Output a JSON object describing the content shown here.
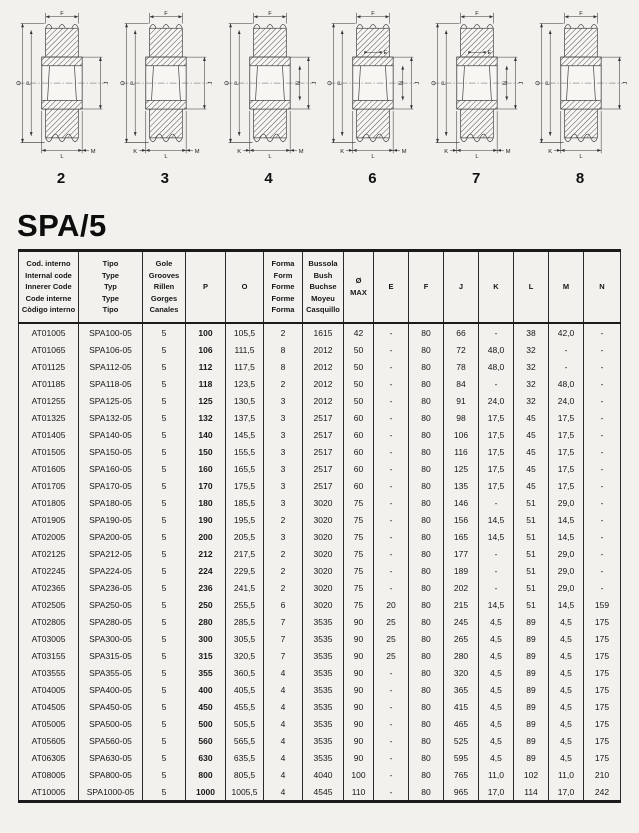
{
  "page": {
    "title": "SPA/5"
  },
  "diagrams": [
    {
      "number": "2",
      "labels": {
        "f": "F",
        "o": "O",
        "p": "P",
        "j": "J",
        "n": "",
        "e": "",
        "k": "",
        "l": "L",
        "m": "M"
      }
    },
    {
      "number": "3",
      "labels": {
        "f": "F",
        "o": "O",
        "p": "P",
        "j": "J",
        "n": "",
        "e": "",
        "k": "K",
        "l": "L",
        "m": "M"
      }
    },
    {
      "number": "4",
      "labels": {
        "f": "F",
        "o": "O",
        "p": "P",
        "j": "J",
        "n": "N",
        "e": "",
        "k": "K",
        "l": "L",
        "m": "M"
      }
    },
    {
      "number": "6",
      "labels": {
        "f": "F",
        "o": "O",
        "p": "P",
        "j": "J",
        "n": "N",
        "e": "E",
        "k": "K",
        "l": "L",
        "m": "M"
      }
    },
    {
      "number": "7",
      "labels": {
        "f": "F",
        "o": "O",
        "p": "P",
        "j": "J",
        "n": "N",
        "e": "E",
        "k": "K",
        "l": "L",
        "m": "M"
      }
    },
    {
      "number": "8",
      "labels": {
        "f": "F",
        "o": "O",
        "p": "P",
        "j": "J",
        "n": "",
        "e": "",
        "k": "K",
        "l": "L",
        "m": ""
      }
    }
  ],
  "table": {
    "columns": [
      {
        "lines": [
          "Cod. interno",
          "Internal code",
          "Innerer Code",
          "Code interne",
          "Còdigo interno"
        ]
      },
      {
        "lines": [
          "Tipo",
          "Type",
          "Typ",
          "Type",
          "Tipo"
        ]
      },
      {
        "lines": [
          "Gole",
          "Grooves",
          "Rillen",
          "Gorges",
          "Canales"
        ]
      },
      {
        "lines": [
          "P"
        ]
      },
      {
        "lines": [
          "O"
        ]
      },
      {
        "lines": [
          "Forma",
          "Form",
          "Forme",
          "Forme",
          "Forma"
        ]
      },
      {
        "lines": [
          "Bussola",
          "Bush",
          "Buchse",
          "Moyeu",
          "Casquillo"
        ]
      },
      {
        "lines": [
          "Ø",
          "MAX"
        ]
      },
      {
        "lines": [
          "E"
        ]
      },
      {
        "lines": [
          "F"
        ]
      },
      {
        "lines": [
          "J"
        ]
      },
      {
        "lines": [
          "K"
        ]
      },
      {
        "lines": [
          "L"
        ]
      },
      {
        "lines": [
          "M"
        ]
      },
      {
        "lines": [
          "N"
        ]
      }
    ],
    "rows": [
      [
        "AT01005",
        "SPA100-05",
        "5",
        "100",
        "105,5",
        "2",
        "1615",
        "42",
        "-",
        "80",
        "66",
        "-",
        "38",
        "42,0",
        "-"
      ],
      [
        "AT01065",
        "SPA106-05",
        "5",
        "106",
        "111,5",
        "8",
        "2012",
        "50",
        "-",
        "80",
        "72",
        "48,0",
        "32",
        "-",
        "-"
      ],
      [
        "AT01125",
        "SPA112-05",
        "5",
        "112",
        "117,5",
        "8",
        "2012",
        "50",
        "-",
        "80",
        "78",
        "48,0",
        "32",
        "-",
        "-"
      ],
      [
        "AT01185",
        "SPA118-05",
        "5",
        "118",
        "123,5",
        "2",
        "2012",
        "50",
        "-",
        "80",
        "84",
        "-",
        "32",
        "48,0",
        "-"
      ],
      [
        "AT01255",
        "SPA125-05",
        "5",
        "125",
        "130,5",
        "3",
        "2012",
        "50",
        "-",
        "80",
        "91",
        "24,0",
        "32",
        "24,0",
        "-"
      ],
      [
        "AT01325",
        "SPA132-05",
        "5",
        "132",
        "137,5",
        "3",
        "2517",
        "60",
        "-",
        "80",
        "98",
        "17,5",
        "45",
        "17,5",
        "-"
      ],
      [
        "AT01405",
        "SPA140-05",
        "5",
        "140",
        "145,5",
        "3",
        "2517",
        "60",
        "-",
        "80",
        "106",
        "17,5",
        "45",
        "17,5",
        "-"
      ],
      [
        "AT01505",
        "SPA150-05",
        "5",
        "150",
        "155,5",
        "3",
        "2517",
        "60",
        "-",
        "80",
        "116",
        "17,5",
        "45",
        "17,5",
        "-"
      ],
      [
        "AT01605",
        "SPA160-05",
        "5",
        "160",
        "165,5",
        "3",
        "2517",
        "60",
        "-",
        "80",
        "125",
        "17,5",
        "45",
        "17,5",
        "-"
      ],
      [
        "AT01705",
        "SPA170-05",
        "5",
        "170",
        "175,5",
        "3",
        "2517",
        "60",
        "-",
        "80",
        "135",
        "17,5",
        "45",
        "17,5",
        "-"
      ],
      [
        "AT01805",
        "SPA180-05",
        "5",
        "180",
        "185,5",
        "3",
        "3020",
        "75",
        "-",
        "80",
        "146",
        "-",
        "51",
        "29,0",
        "-"
      ],
      [
        "AT01905",
        "SPA190-05",
        "5",
        "190",
        "195,5",
        "2",
        "3020",
        "75",
        "-",
        "80",
        "156",
        "14,5",
        "51",
        "14,5",
        "-"
      ],
      [
        "AT02005",
        "SPA200-05",
        "5",
        "200",
        "205,5",
        "3",
        "3020",
        "75",
        "-",
        "80",
        "165",
        "14,5",
        "51",
        "14,5",
        "-"
      ],
      [
        "AT02125",
        "SPA212-05",
        "5",
        "212",
        "217,5",
        "2",
        "3020",
        "75",
        "-",
        "80",
        "177",
        "-",
        "51",
        "29,0",
        "-"
      ],
      [
        "AT02245",
        "SPA224-05",
        "5",
        "224",
        "229,5",
        "2",
        "3020",
        "75",
        "-",
        "80",
        "189",
        "-",
        "51",
        "29,0",
        "-"
      ],
      [
        "AT02365",
        "SPA236-05",
        "5",
        "236",
        "241,5",
        "2",
        "3020",
        "75",
        "-",
        "80",
        "202",
        "-",
        "51",
        "29,0",
        "-"
      ],
      [
        "AT02505",
        "SPA250-05",
        "5",
        "250",
        "255,5",
        "6",
        "3020",
        "75",
        "20",
        "80",
        "215",
        "14,5",
        "51",
        "14,5",
        "159"
      ],
      [
        "AT02805",
        "SPA280-05",
        "5",
        "280",
        "285,5",
        "7",
        "3535",
        "90",
        "25",
        "80",
        "245",
        "4,5",
        "89",
        "4,5",
        "175"
      ],
      [
        "AT03005",
        "SPA300-05",
        "5",
        "300",
        "305,5",
        "7",
        "3535",
        "90",
        "25",
        "80",
        "265",
        "4,5",
        "89",
        "4,5",
        "175"
      ],
      [
        "AT03155",
        "SPA315-05",
        "5",
        "315",
        "320,5",
        "7",
        "3535",
        "90",
        "25",
        "80",
        "280",
        "4,5",
        "89",
        "4,5",
        "175"
      ],
      [
        "AT03555",
        "SPA355-05",
        "5",
        "355",
        "360,5",
        "4",
        "3535",
        "90",
        "-",
        "80",
        "320",
        "4,5",
        "89",
        "4,5",
        "175"
      ],
      [
        "AT04005",
        "SPA400-05",
        "5",
        "400",
        "405,5",
        "4",
        "3535",
        "90",
        "-",
        "80",
        "365",
        "4,5",
        "89",
        "4,5",
        "175"
      ],
      [
        "AT04505",
        "SPA450-05",
        "5",
        "450",
        "455,5",
        "4",
        "3535",
        "90",
        "-",
        "80",
        "415",
        "4,5",
        "89",
        "4,5",
        "175"
      ],
      [
        "AT05005",
        "SPA500-05",
        "5",
        "500",
        "505,5",
        "4",
        "3535",
        "90",
        "-",
        "80",
        "465",
        "4,5",
        "89",
        "4,5",
        "175"
      ],
      [
        "AT05605",
        "SPA560-05",
        "5",
        "560",
        "565,5",
        "4",
        "3535",
        "90",
        "-",
        "80",
        "525",
        "4,5",
        "89",
        "4,5",
        "175"
      ],
      [
        "AT06305",
        "SPA630-05",
        "5",
        "630",
        "635,5",
        "4",
        "3535",
        "90",
        "-",
        "80",
        "595",
        "4,5",
        "89",
        "4,5",
        "175"
      ],
      [
        "AT08005",
        "SPA800-05",
        "5",
        "800",
        "805,5",
        "4",
        "4040",
        "100",
        "-",
        "80",
        "765",
        "11,0",
        "102",
        "11,0",
        "210"
      ],
      [
        "AT10005",
        "SPA1000-05",
        "5",
        "1000",
        "1005,5",
        "4",
        "4545",
        "110",
        "-",
        "80",
        "965",
        "17,0",
        "114",
        "17,0",
        "242"
      ]
    ]
  }
}
